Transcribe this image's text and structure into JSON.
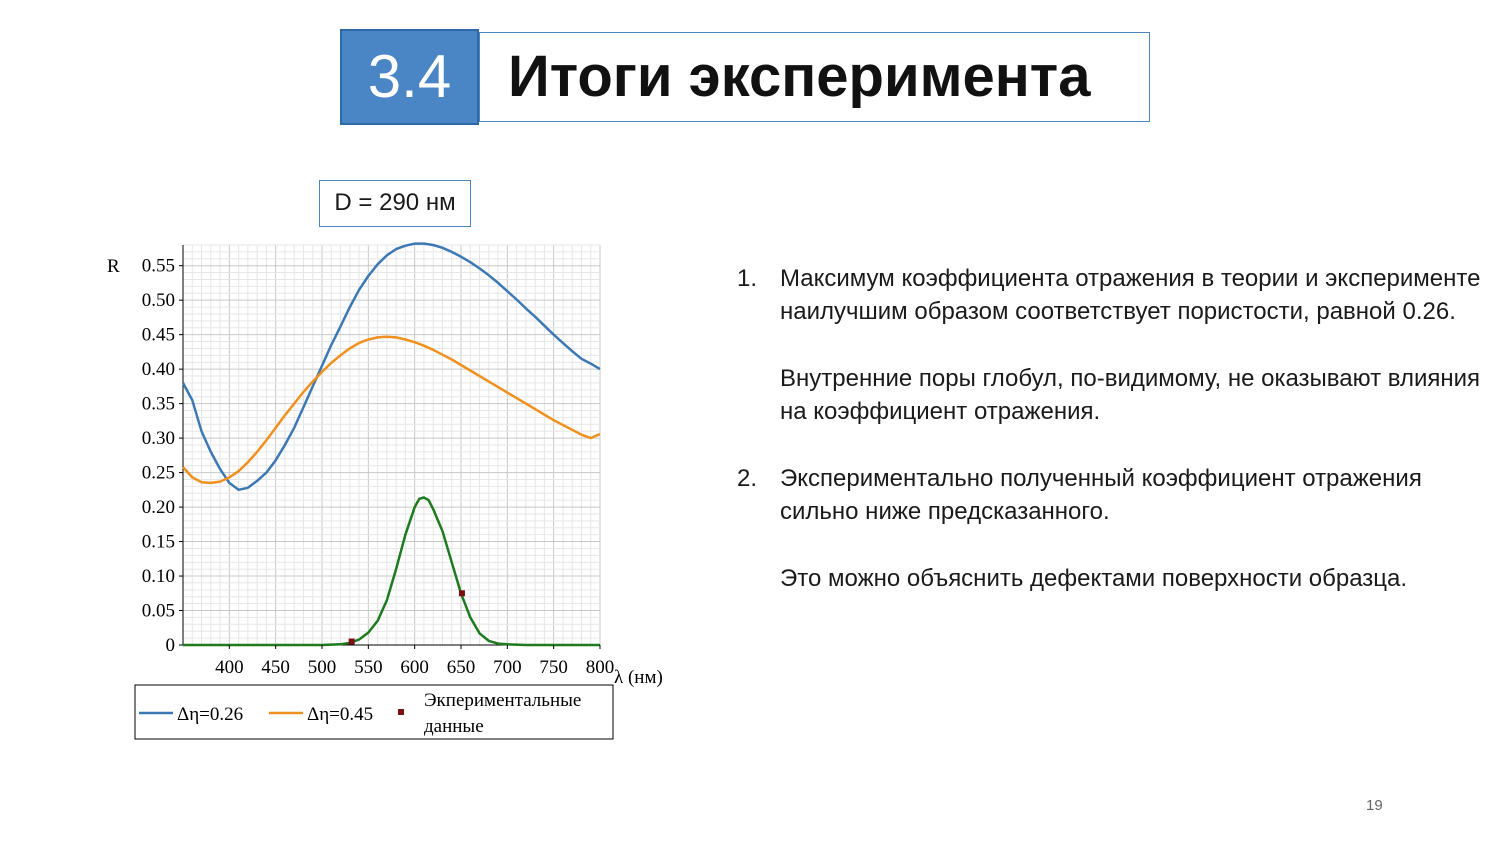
{
  "slide": {
    "section_number": "3.4",
    "title": "Итоги эксперимента",
    "label_box": "D = 290 нм",
    "page_number": "19"
  },
  "points": [
    {
      "num": "1.",
      "paragraphs": [
        "Максимум коэффициента отражения в теории и эксперименте наилучшим образом соответствует пористости, равной 0.26.",
        "Внутренние поры глобул, по-видимому, не оказывают влияния на коэффициент отражения."
      ]
    },
    {
      "num": "2.",
      "paragraphs": [
        "Экспериментально полученный коэффициент отражения сильно ниже предсказанного.",
        "Это можно объяснить дефектами поверхности образца."
      ]
    }
  ],
  "chart_data": {
    "type": "line",
    "xlabel": "λ (нм)",
    "ylabel": "R",
    "xlim": [
      350,
      800
    ],
    "ylim": [
      0,
      0.58
    ],
    "xticks": [
      400,
      450,
      500,
      550,
      600,
      650,
      700,
      750,
      800
    ],
    "yticks": [
      0,
      0.05,
      0.1,
      0.15,
      0.2,
      0.25,
      0.3,
      0.35,
      0.4,
      0.45,
      0.5,
      0.55
    ],
    "ytick_labels": [
      "0",
      "0.05",
      "0.10",
      "0.15",
      "0.20",
      "0.25",
      "0.30",
      "0.35",
      "0.40",
      "0.45",
      "0.50",
      "0.55"
    ],
    "grid": true,
    "legend_placement": "bottom",
    "series": [
      {
        "name": "Δη=0.26",
        "color": "#3c78b4",
        "x": [
          350,
          360,
          370,
          380,
          390,
          400,
          410,
          420,
          430,
          440,
          450,
          460,
          470,
          480,
          490,
          500,
          510,
          520,
          530,
          540,
          550,
          560,
          570,
          580,
          590,
          600,
          610,
          620,
          630,
          640,
          650,
          660,
          670,
          680,
          690,
          700,
          710,
          720,
          730,
          740,
          750,
          760,
          770,
          780,
          790,
          800
        ],
        "y": [
          0.38,
          0.355,
          0.31,
          0.28,
          0.255,
          0.235,
          0.225,
          0.228,
          0.238,
          0.25,
          0.268,
          0.29,
          0.315,
          0.345,
          0.375,
          0.405,
          0.435,
          0.462,
          0.49,
          0.515,
          0.535,
          0.552,
          0.565,
          0.574,
          0.579,
          0.582,
          0.582,
          0.58,
          0.576,
          0.57,
          0.563,
          0.555,
          0.546,
          0.536,
          0.525,
          0.513,
          0.501,
          0.488,
          0.476,
          0.463,
          0.45,
          0.438,
          0.426,
          0.415,
          0.408,
          0.4
        ]
      },
      {
        "name": "Δη=0.45",
        "color": "#f0901e",
        "x": [
          350,
          360,
          370,
          380,
          390,
          400,
          410,
          420,
          430,
          440,
          450,
          460,
          470,
          480,
          490,
          500,
          510,
          520,
          530,
          540,
          550,
          560,
          570,
          580,
          590,
          600,
          610,
          620,
          630,
          640,
          650,
          660,
          670,
          680,
          690,
          700,
          710,
          720,
          730,
          740,
          750,
          760,
          770,
          780,
          790,
          800
        ],
        "y": [
          0.258,
          0.243,
          0.236,
          0.235,
          0.237,
          0.243,
          0.252,
          0.265,
          0.28,
          0.297,
          0.315,
          0.333,
          0.35,
          0.367,
          0.382,
          0.396,
          0.409,
          0.42,
          0.43,
          0.438,
          0.443,
          0.446,
          0.447,
          0.446,
          0.443,
          0.439,
          0.434,
          0.428,
          0.421,
          0.414,
          0.406,
          0.398,
          0.39,
          0.382,
          0.374,
          0.366,
          0.358,
          0.35,
          0.342,
          0.334,
          0.326,
          0.319,
          0.312,
          0.305,
          0.3,
          0.306
        ]
      },
      {
        "name": "",
        "color": "#1e7a1e",
        "x": [
          350,
          400,
          450,
          500,
          520,
          530,
          540,
          550,
          560,
          570,
          580,
          590,
          600,
          605,
          610,
          615,
          620,
          630,
          640,
          650,
          660,
          670,
          680,
          690,
          700,
          720,
          750,
          800
        ],
        "y": [
          0,
          0,
          0,
          0,
          0.001,
          0.003,
          0.008,
          0.018,
          0.035,
          0.065,
          0.11,
          0.16,
          0.2,
          0.212,
          0.214,
          0.21,
          0.197,
          0.165,
          0.12,
          0.075,
          0.04,
          0.017,
          0.006,
          0.002,
          0.001,
          0,
          0,
          0
        ]
      }
    ],
    "points": {
      "name": "Экпериментальные данные",
      "color": "#7a0f14",
      "x": [
        532,
        651
      ],
      "y": [
        0.005,
        0.075
      ]
    }
  }
}
